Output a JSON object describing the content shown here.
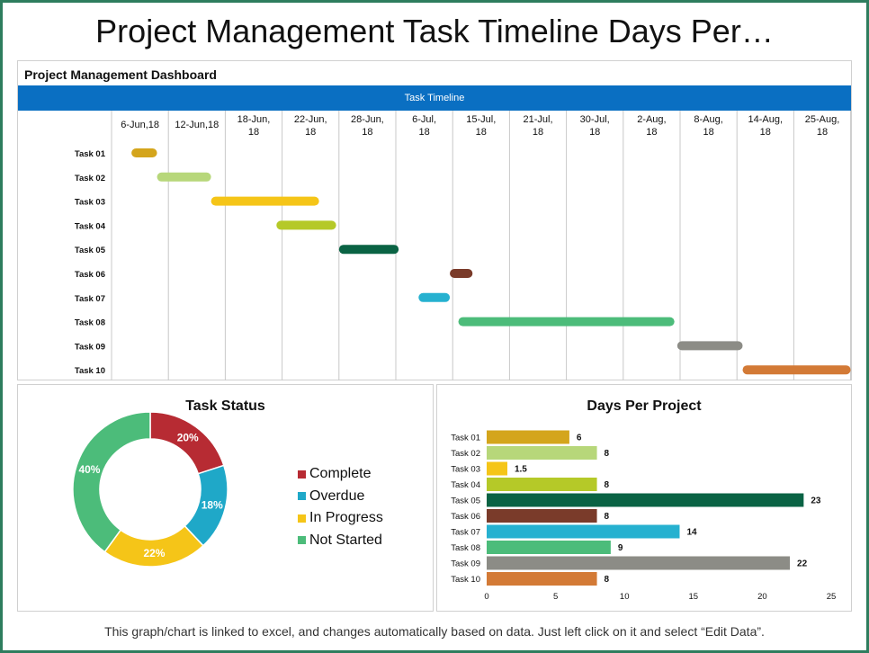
{
  "page": {
    "title": "Project Management Task Timeline Days Per…",
    "footer": "This graph/chart is linked to excel, and changes automatically based on data. Just left click on it and select “Edit Data”."
  },
  "dashboard": {
    "title": "Project Management Dashboard",
    "timeline_header": "Task Timeline"
  },
  "colors": {
    "task01": "#d4a51c",
    "task02": "#b7d77a",
    "task03": "#f5c518",
    "task04": "#b5c928",
    "task05": "#0a6344",
    "task06": "#7a3b2a",
    "task07": "#26b1d0",
    "task08": "#4cbc7a",
    "task09": "#8c8c86",
    "task10": "#d37a36",
    "complete": "#b72b33",
    "overdue": "#1fa8c8",
    "in_progress": "#f5c518",
    "not_started": "#4cbc7a",
    "header_blue": "#0a6fc2"
  },
  "chart_data": [
    {
      "type": "gantt",
      "title": "Task Timeline",
      "columns": [
        "6-Jun,18",
        "12-Jun,18",
        "18-Jun, 18",
        "22-Jun, 18",
        "28-Jun, 18",
        "6-Jul, 18",
        "15-Jul, 18",
        "21-Jul, 18",
        "30-Jul, 18",
        "2-Aug, 18",
        "8-Aug, 18",
        "14-Aug, 18",
        "25-Aug, 18"
      ],
      "tasks": [
        {
          "name": "Task 01",
          "start": 0.35,
          "end": 0.8,
          "color": "#d4a51c"
        },
        {
          "name": "Task 02",
          "start": 0.8,
          "end": 1.75,
          "color": "#b7d77a"
        },
        {
          "name": "Task 03",
          "start": 1.75,
          "end": 3.65,
          "color": "#f5c518"
        },
        {
          "name": "Task 04",
          "start": 2.9,
          "end": 3.95,
          "color": "#b5c928"
        },
        {
          "name": "Task 05",
          "start": 4.0,
          "end": 5.05,
          "color": "#0a6344"
        },
        {
          "name": "Task 06",
          "start": 5.95,
          "end": 6.35,
          "color": "#7a3b2a"
        },
        {
          "name": "Task 07",
          "start": 5.4,
          "end": 5.95,
          "color": "#26b1d0"
        },
        {
          "name": "Task 08",
          "start": 6.1,
          "end": 9.9,
          "color": "#4cbc7a"
        },
        {
          "name": "Task 09",
          "start": 9.95,
          "end": 11.1,
          "color": "#8c8c86"
        },
        {
          "name": "Task 10",
          "start": 11.1,
          "end": 13.0,
          "color": "#d37a36"
        }
      ]
    },
    {
      "type": "pie",
      "title": "Task Status",
      "categories": [
        "Complete",
        "Overdue",
        "In Progress",
        "Not Started"
      ],
      "values": [
        20,
        18,
        22,
        40
      ],
      "value_labels": [
        "20%",
        "18%",
        "22%",
        "40%"
      ],
      "colors": [
        "#b72b33",
        "#1fa8c8",
        "#f5c518",
        "#4cbc7a"
      ],
      "legend": "right"
    },
    {
      "type": "bar",
      "orientation": "horizontal",
      "title": "Days Per Project",
      "categories": [
        "Task 01",
        "Task 02",
        "Task 03",
        "Task 04",
        "Task 05",
        "Task 06",
        "Task 07",
        "Task 08",
        "Task 09",
        "Task 10"
      ],
      "values": [
        6,
        8,
        1.5,
        8,
        23,
        8,
        14,
        9,
        22,
        8
      ],
      "value_labels": [
        "6",
        "8",
        "1.5",
        "8",
        "23",
        "8",
        "14",
        "9",
        "22",
        "8"
      ],
      "colors": [
        "#d4a51c",
        "#b7d77a",
        "#f5c518",
        "#b5c928",
        "#0a6344",
        "#7a3b2a",
        "#26b1d0",
        "#4cbc7a",
        "#8c8c86",
        "#d37a36"
      ],
      "xlim": [
        0,
        25
      ],
      "xticks": [
        "0",
        "5",
        "10",
        "15",
        "20",
        "25"
      ],
      "grid": false
    }
  ]
}
